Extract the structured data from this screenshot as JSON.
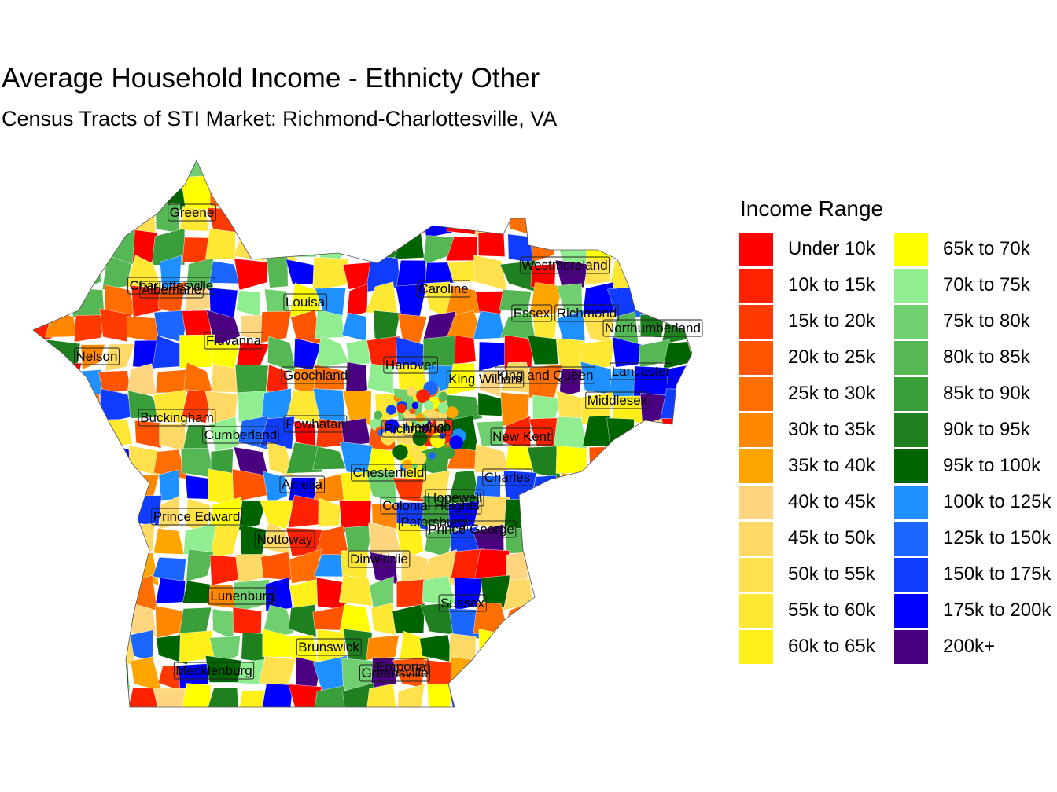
{
  "title": "Average Household Income - Ethnicty Other",
  "subtitle": "Census Tracts of STI Market: Richmond-Charlottesville, VA",
  "legend": {
    "title": "Income Range",
    "items": [
      {
        "label": "Under 10k",
        "color": "#ff0000"
      },
      {
        "label": "10k to 15k",
        "color": "#ff2200"
      },
      {
        "label": "15k to 20k",
        "color": "#ff3a00"
      },
      {
        "label": "20k to 25k",
        "color": "#ff5500"
      },
      {
        "label": "25k to 30k",
        "color": "#ff6e00"
      },
      {
        "label": "30k to 35k",
        "color": "#ff8800"
      },
      {
        "label": "35k to 40k",
        "color": "#ffa500"
      },
      {
        "label": "40k to 45k",
        "color": "#ffd580"
      },
      {
        "label": "45k to 50k",
        "color": "#ffd966"
      },
      {
        "label": "50k to 55k",
        "color": "#ffe14d"
      },
      {
        "label": "55k to 60k",
        "color": "#ffe833"
      },
      {
        "label": "60k to 65k",
        "color": "#fff01a"
      },
      {
        "label": "65k to 70k",
        "color": "#ffff00"
      },
      {
        "label": "70k to 75k",
        "color": "#90ee90"
      },
      {
        "label": "75k to 80k",
        "color": "#70d070"
      },
      {
        "label": "80k to 85k",
        "color": "#55b855"
      },
      {
        "label": "85k to 90k",
        "color": "#3a9e3a"
      },
      {
        "label": "90k to 95k",
        "color": "#1f801f"
      },
      {
        "label": "95k to 100k",
        "color": "#006400"
      },
      {
        "label": "100k to 125k",
        "color": "#1e90ff"
      },
      {
        "label": "125k to 150k",
        "color": "#1a66ff"
      },
      {
        "label": "150k to 175k",
        "color": "#0f3cff"
      },
      {
        "label": "175k to 200k",
        "color": "#0000ff"
      },
      {
        "label": "200k+",
        "color": "#4b0082"
      }
    ]
  },
  "counties": [
    "Greene",
    "Charlottesville",
    "Albemarle",
    "Louisa",
    "Caroline",
    "Westmoreland",
    "Essex",
    "Richmond",
    "Northumberland",
    "Fluvanna",
    "Nelson",
    "Goochland",
    "Hanover",
    "King William",
    "King and Queen",
    "Lancaster",
    "Middlesex",
    "Buckingham",
    "Cumberland",
    "Powhatan",
    "Richmond",
    "Henrico",
    "New Kent",
    "Amelia",
    "Chesterfield",
    "Charles",
    "Hopewell",
    "Colonial Heights",
    "Prince Edward",
    "Petersburg",
    "Prince George",
    "Nottoway",
    "Dinwiddie",
    "Lunenburg",
    "Sussex",
    "Brunswick",
    "Mecklenburg",
    "Emporia",
    "Greensville"
  ]
}
